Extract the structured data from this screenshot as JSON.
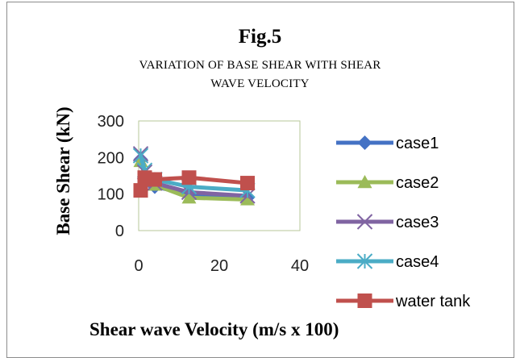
{
  "chart_data": {
    "type": "line",
    "title": "Fig.5",
    "subtitle_lines": [
      "VARIATION OF BASE SHEAR WITH SHEAR",
      "WAVE VELOCITY"
    ],
    "xlabel": "Shear wave Velocity (m/s x 100)",
    "ylabel": "Base Shear (kN)",
    "xlim": [
      0,
      40
    ],
    "ylim": [
      0,
      300
    ],
    "x_ticks": [
      "0",
      "20",
      "40"
    ],
    "y_ticks": [
      "0",
      "100",
      "200",
      "300"
    ],
    "grid": false,
    "legend_position": "right",
    "series": [
      {
        "name": "case1",
        "color": "#4472c4",
        "marker": "diamond",
        "x": [
          0.5,
          1.5,
          4,
          12.5,
          27
        ],
        "y": [
          195,
          150,
          120,
          100,
          90
        ]
      },
      {
        "name": "case2",
        "color": "#9bbb59",
        "marker": "triangle",
        "x": [
          0.5,
          1.5,
          4,
          12.5,
          27
        ],
        "y": [
          190,
          155,
          125,
          90,
          85
        ]
      },
      {
        "name": "case3",
        "color": "#8064a2",
        "marker": "x",
        "x": [
          0.5,
          1.5,
          4,
          12.5,
          27
        ],
        "y": [
          210,
          160,
          130,
          105,
          95
        ]
      },
      {
        "name": "case4",
        "color": "#4bacc6",
        "marker": "star",
        "x": [
          0.5,
          1.5,
          4,
          12.5,
          27
        ],
        "y": [
          205,
          165,
          140,
          120,
          110
        ]
      },
      {
        "name": "water tank",
        "color": "#c0504d",
        "marker": "square",
        "x": [
          0.5,
          1.5,
          4,
          12.5,
          27
        ],
        "y": [
          110,
          145,
          140,
          145,
          130
        ]
      }
    ]
  }
}
